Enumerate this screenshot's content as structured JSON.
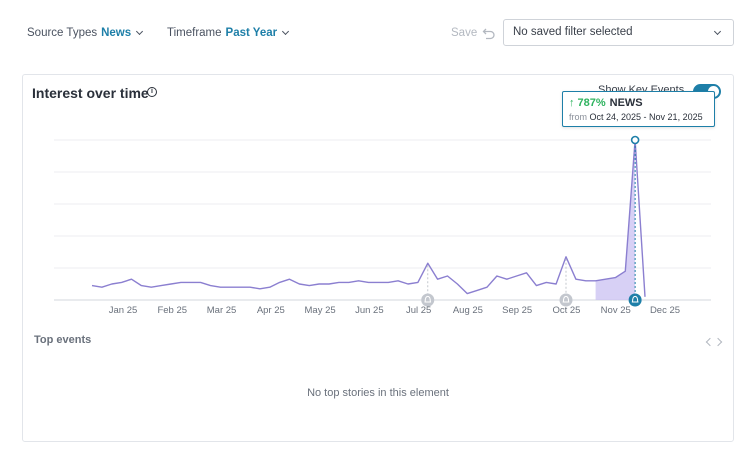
{
  "filters": {
    "source_types": {
      "label": "Source Types",
      "value": "News"
    },
    "timeframe": {
      "label": "Timeframe",
      "value": "Past Year"
    },
    "save_label": "Save",
    "saved_filter": "No saved filter selected"
  },
  "card": {
    "title": "Interest over time",
    "key_events_label": "Show Key Events",
    "top_events_label": "Top events",
    "empty_message": "No top stories in this element"
  },
  "tooltip": {
    "change": "787%",
    "series": "NEWS",
    "from_label": "from",
    "range": "Oct 24, 2025 - Nov 21, 2025"
  },
  "colors": {
    "accent": "#1e7fa8",
    "line": "#8b7fd0",
    "positive": "#2eb35f"
  },
  "chart_data": {
    "type": "line",
    "x_tick_labels": [
      "Jan 25",
      "Feb 25",
      "Mar 25",
      "Apr 25",
      "May 25",
      "Jun 25",
      "Jul 25",
      "Aug 25",
      "Sep 25",
      "Oct 25",
      "Nov 25",
      "Dec 25"
    ],
    "series": [
      {
        "name": "NEWS",
        "values": [
          9,
          8,
          10,
          11,
          13,
          9,
          8,
          9,
          10,
          11,
          11,
          11,
          9,
          8,
          8,
          8,
          8,
          7,
          8,
          11,
          13,
          10,
          9,
          10,
          10,
          11,
          11,
          12,
          11,
          11,
          11,
          12,
          10,
          11,
          23,
          13,
          15,
          10,
          4,
          6,
          8,
          15,
          13,
          15,
          17,
          9,
          11,
          10,
          27,
          13,
          12,
          12,
          13,
          14,
          18,
          100,
          2
        ]
      }
    ],
    "highlight_index": 55,
    "key_event_indices": [
      34,
      48,
      55
    ],
    "ylim": [
      0,
      100
    ],
    "grid": true
  }
}
